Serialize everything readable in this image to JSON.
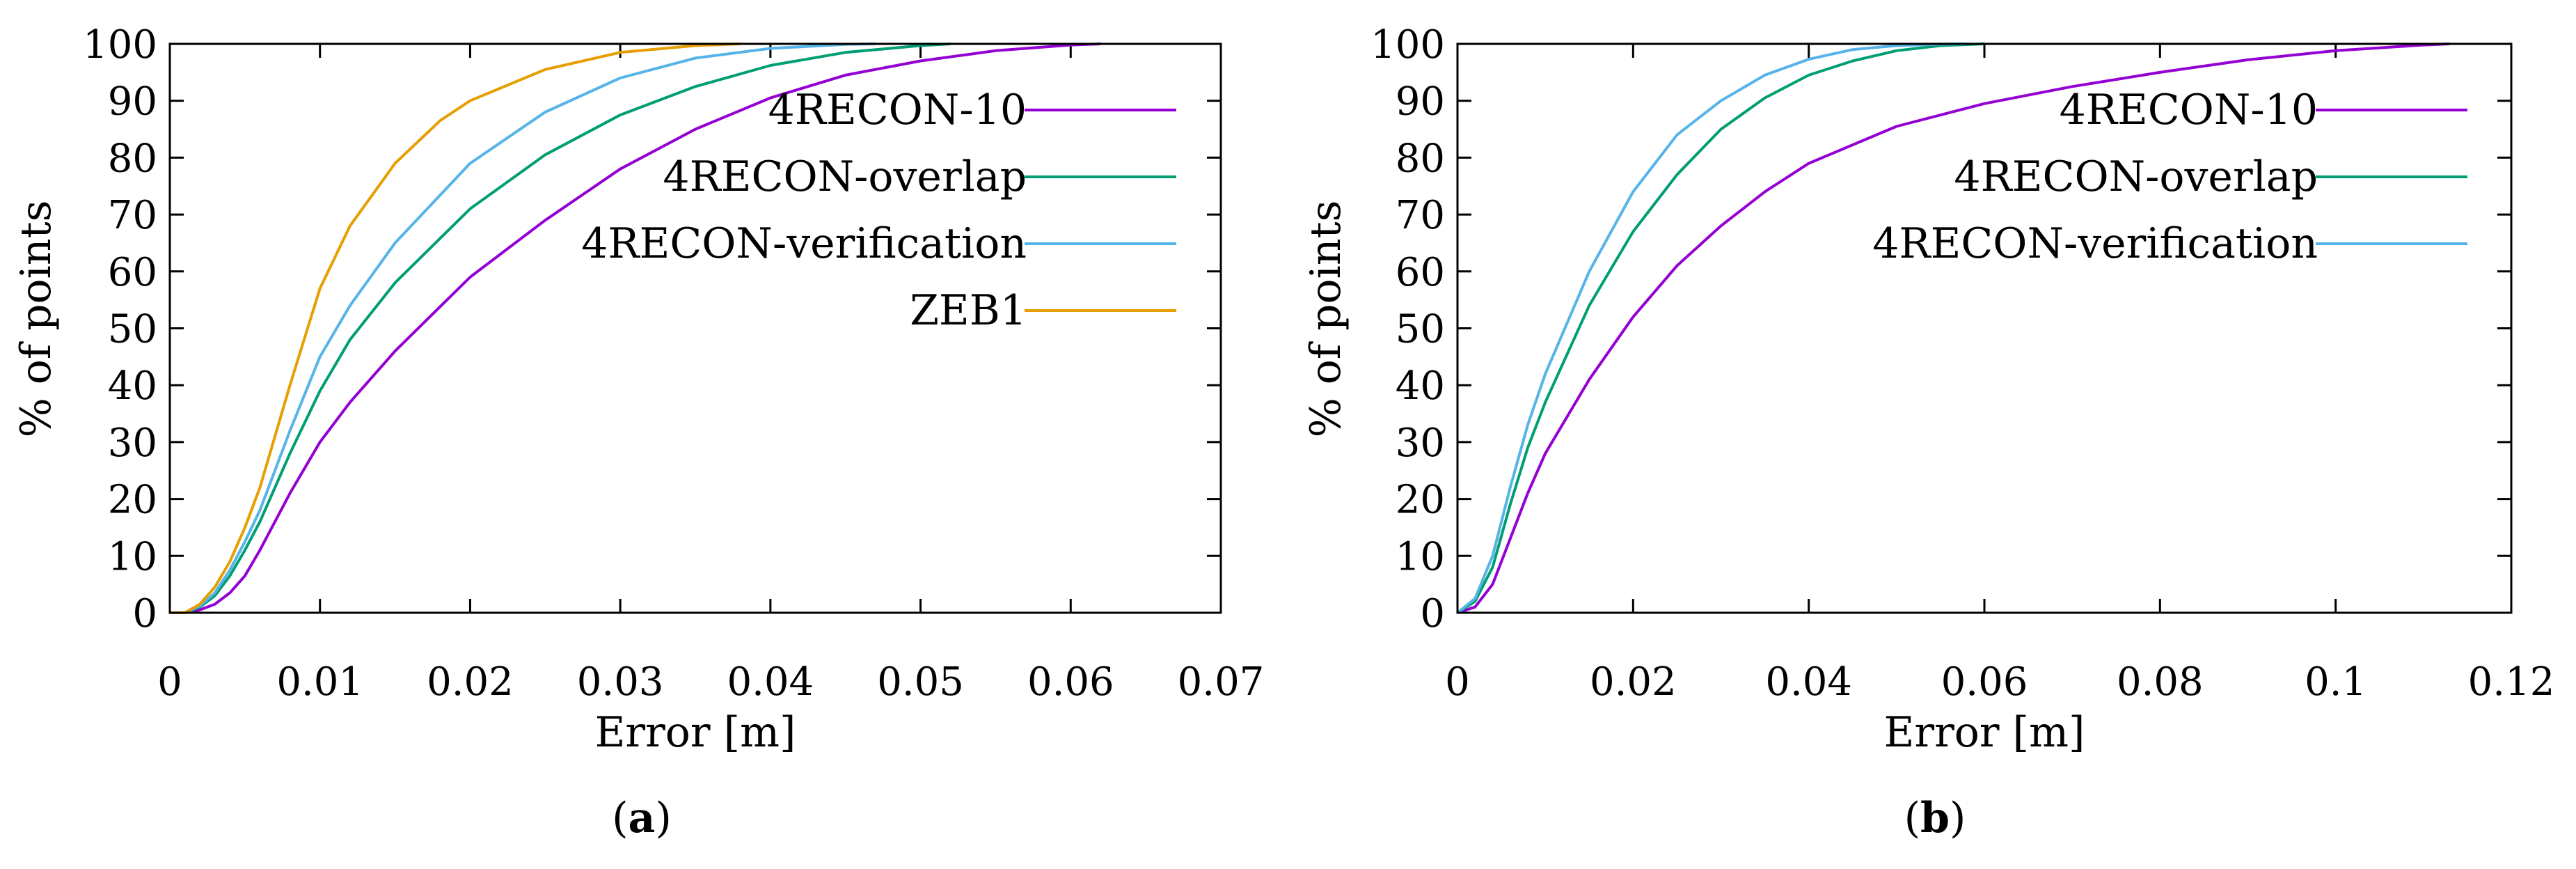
{
  "chart_data": [
    {
      "type": "line",
      "panel_label": "a",
      "xlabel": "Error [m]",
      "ylabel": "% of points",
      "xlim": [
        0,
        0.07
      ],
      "ylim": [
        0,
        100
      ],
      "x_ticks": [
        0,
        0.01,
        0.02,
        0.03,
        0.04,
        0.05,
        0.06,
        0.07
      ],
      "x_tick_labels": [
        "0",
        "0.01",
        "0.02",
        "0.03",
        "0.04",
        "0.05",
        "0.06",
        "0.07"
      ],
      "y_ticks": [
        0,
        10,
        20,
        30,
        40,
        50,
        60,
        70,
        80,
        90,
        100
      ],
      "y_tick_labels": [
        "0",
        "10",
        "20",
        "30",
        "40",
        "50",
        "60",
        "70",
        "80",
        "90",
        "100"
      ],
      "grid": false,
      "legend_position": "top-right",
      "series": [
        {
          "name": "4RECON-10",
          "color": "#9400d3",
          "x": [
            0,
            0.001,
            0.002,
            0.003,
            0.004,
            0.005,
            0.006,
            0.008,
            0.01,
            0.012,
            0.015,
            0.02,
            0.025,
            0.03,
            0.035,
            0.04,
            0.045,
            0.05,
            0.055,
            0.06,
            0.062
          ],
          "y": [
            0,
            0,
            0.5,
            1.5,
            3.5,
            6.5,
            11,
            21,
            30,
            37,
            46,
            59,
            69,
            78,
            85,
            90.5,
            94.5,
            97,
            98.8,
            99.8,
            100
          ]
        },
        {
          "name": "4RECON-overlap",
          "color": "#009e73",
          "x": [
            0,
            0.001,
            0.002,
            0.003,
            0.004,
            0.005,
            0.006,
            0.008,
            0.01,
            0.012,
            0.015,
            0.02,
            0.025,
            0.03,
            0.035,
            0.04,
            0.045,
            0.05,
            0.052
          ],
          "y": [
            0,
            0,
            1,
            3,
            6.5,
            11,
            16,
            28,
            39,
            48,
            58,
            71,
            80.5,
            87.5,
            92.5,
            96.2,
            98.5,
            99.7,
            100
          ]
        },
        {
          "name": "4RECON-verification",
          "color": "#56b4e9",
          "x": [
            0,
            0.001,
            0.002,
            0.003,
            0.004,
            0.005,
            0.006,
            0.008,
            0.01,
            0.012,
            0.015,
            0.02,
            0.025,
            0.03,
            0.035,
            0.04,
            0.045,
            0.047
          ],
          "y": [
            0,
            0,
            1.2,
            3.5,
            7.5,
            12.5,
            18,
            32,
            45,
            54,
            65,
            79,
            88,
            94,
            97.5,
            99.2,
            99.9,
            100
          ]
        },
        {
          "name": "ZEB1",
          "color": "#e69f00",
          "x": [
            0,
            0.001,
            0.002,
            0.003,
            0.004,
            0.005,
            0.006,
            0.008,
            0.01,
            0.012,
            0.015,
            0.018,
            0.02,
            0.025,
            0.03,
            0.035,
            0.038
          ],
          "y": [
            0,
            0,
            1.5,
            4.5,
            9,
            15,
            22,
            40,
            57,
            68,
            79,
            86.5,
            90,
            95.5,
            98.5,
            99.7,
            100
          ]
        }
      ]
    },
    {
      "type": "line",
      "panel_label": "b",
      "xlabel": "Error [m]",
      "ylabel": "% of points",
      "xlim": [
        0,
        0.12
      ],
      "ylim": [
        0,
        100
      ],
      "x_ticks": [
        0,
        0.02,
        0.04,
        0.06,
        0.08,
        0.1,
        0.12
      ],
      "x_tick_labels": [
        "0",
        "0.02",
        "0.04",
        "0.06",
        "0.08",
        "0.1",
        "0.12"
      ],
      "y_ticks": [
        0,
        10,
        20,
        30,
        40,
        50,
        60,
        70,
        80,
        90,
        100
      ],
      "y_tick_labels": [
        "0",
        "10",
        "20",
        "30",
        "40",
        "50",
        "60",
        "70",
        "80",
        "90",
        "100"
      ],
      "grid": false,
      "legend_position": "top-right",
      "series": [
        {
          "name": "4RECON-10",
          "color": "#9400d3",
          "x": [
            0,
            0.002,
            0.004,
            0.006,
            0.008,
            0.01,
            0.015,
            0.02,
            0.025,
            0.03,
            0.035,
            0.04,
            0.05,
            0.06,
            0.07,
            0.08,
            0.09,
            0.1,
            0.11,
            0.113
          ],
          "y": [
            0,
            1,
            5,
            13,
            21,
            28,
            41,
            52,
            61,
            68,
            74,
            79,
            85.5,
            89.5,
            92.5,
            95,
            97.2,
            98.8,
            99.8,
            100
          ]
        },
        {
          "name": "4RECON-overlap",
          "color": "#009e73",
          "x": [
            0,
            0.002,
            0.004,
            0.006,
            0.008,
            0.01,
            0.015,
            0.02,
            0.025,
            0.03,
            0.035,
            0.04,
            0.045,
            0.05,
            0.055,
            0.06
          ],
          "y": [
            0,
            2,
            8,
            19,
            29,
            37,
            54,
            67,
            77,
            85,
            90.5,
            94.5,
            97,
            98.8,
            99.7,
            100
          ]
        },
        {
          "name": "4RECON-verification",
          "color": "#56b4e9",
          "x": [
            0,
            0.002,
            0.004,
            0.006,
            0.008,
            0.01,
            0.015,
            0.02,
            0.025,
            0.03,
            0.035,
            0.04,
            0.045,
            0.05,
            0.055,
            0.058
          ],
          "y": [
            0,
            2.5,
            10,
            22,
            33,
            42,
            60,
            74,
            84,
            90,
            94.5,
            97.3,
            99,
            99.7,
            99.95,
            100
          ]
        }
      ]
    }
  ]
}
